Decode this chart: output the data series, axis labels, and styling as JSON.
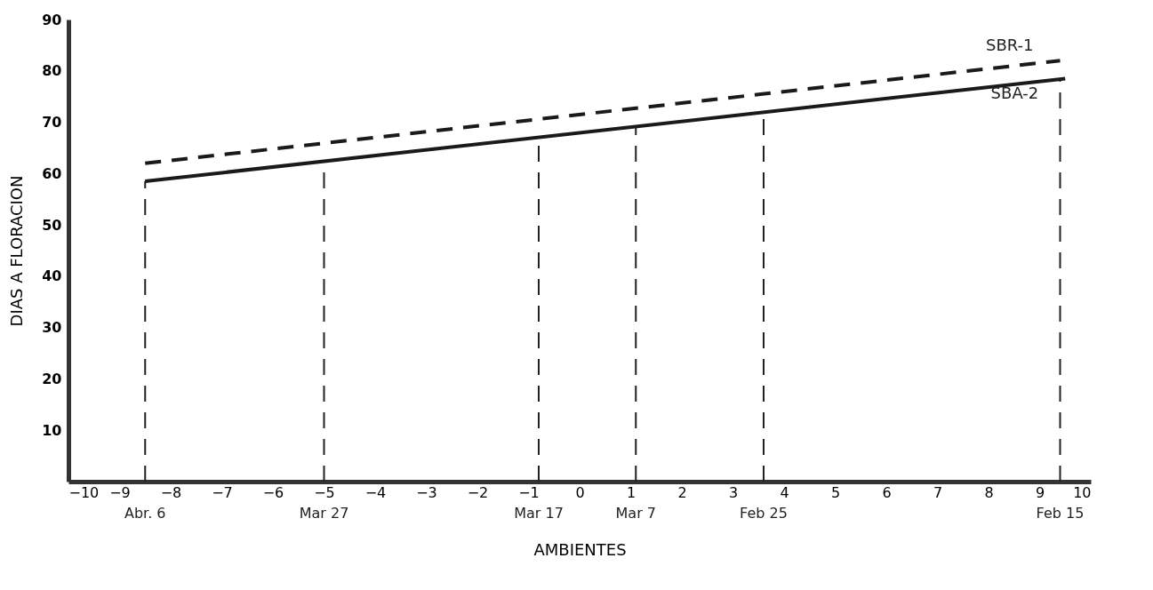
{
  "chart_data": {
    "type": "line",
    "xlabel": "AMBIENTES",
    "ylabel": "DIAS A FLORACION",
    "xlim": [
      -10,
      10
    ],
    "xticks": [
      -10,
      -9,
      -8,
      -7,
      -6,
      -5,
      -4,
      -3,
      -2,
      -1,
      0,
      1,
      2,
      3,
      4,
      5,
      6,
      7,
      8,
      9,
      10
    ],
    "ylim": [
      0,
      90
    ],
    "yticks": [
      10,
      20,
      30,
      40,
      50,
      60,
      70,
      80,
      90
    ],
    "series": [
      {
        "name": "SBR-1",
        "color": "#1a1a1a",
        "line_style": "dashed",
        "x": [
          -8.5,
          9.4
        ],
        "values": [
          62,
          82
        ]
      },
      {
        "name": "SBA-2",
        "color": "#1a1a1a",
        "line_style": "solid",
        "x": [
          -8.5,
          9.5
        ],
        "values": [
          58.5,
          78.5
        ]
      }
    ],
    "ref_lines": [
      {
        "axis": "x",
        "value": -8.5,
        "label": "Abr. 6",
        "line_style": "dashed"
      },
      {
        "axis": "x",
        "value": -5,
        "label": "Mar 27",
        "line_style": "dashed"
      },
      {
        "axis": "x",
        "value": -0.8,
        "label": "Mar 17",
        "line_style": "dashed"
      },
      {
        "axis": "x",
        "value": 1.1,
        "label": "Mar 7",
        "line_style": "dashed"
      },
      {
        "axis": "x",
        "value": 3.6,
        "label": "Feb 25",
        "line_style": "dashed"
      },
      {
        "axis": "x",
        "value": 9.4,
        "label": "Feb 15",
        "line_style": "dashed"
      }
    ]
  }
}
